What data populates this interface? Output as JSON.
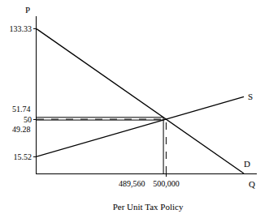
{
  "chart_data": {
    "type": "line",
    "title": "Per Unit Tax Policy",
    "x_label": "Q",
    "y_label": "P",
    "series": [
      {
        "name": "D",
        "color": "#000000",
        "x": [
          0,
          800000
        ],
        "values": [
          133.33,
          0
        ]
      },
      {
        "name": "S",
        "color": "#000000",
        "x": [
          0,
          800000
        ],
        "values": [
          15.52,
          70.69
        ]
      }
    ],
    "xlim": [
      0,
      850000
    ],
    "ylim": [
      0,
      145
    ],
    "xticks": [
      {
        "value": 500000,
        "label": "500,000"
      }
    ],
    "yticks": [
      15.52,
      50,
      133.33
    ],
    "equilibrium": {
      "quantity": 500000,
      "price": 50,
      "line_style": "dashed"
    },
    "tax": {
      "quantity": {
        "value": 489560,
        "label": "489,560"
      },
      "buyer_price": 51.74,
      "seller_price": 49.28,
      "line_style": "solid"
    },
    "grid": false
  }
}
